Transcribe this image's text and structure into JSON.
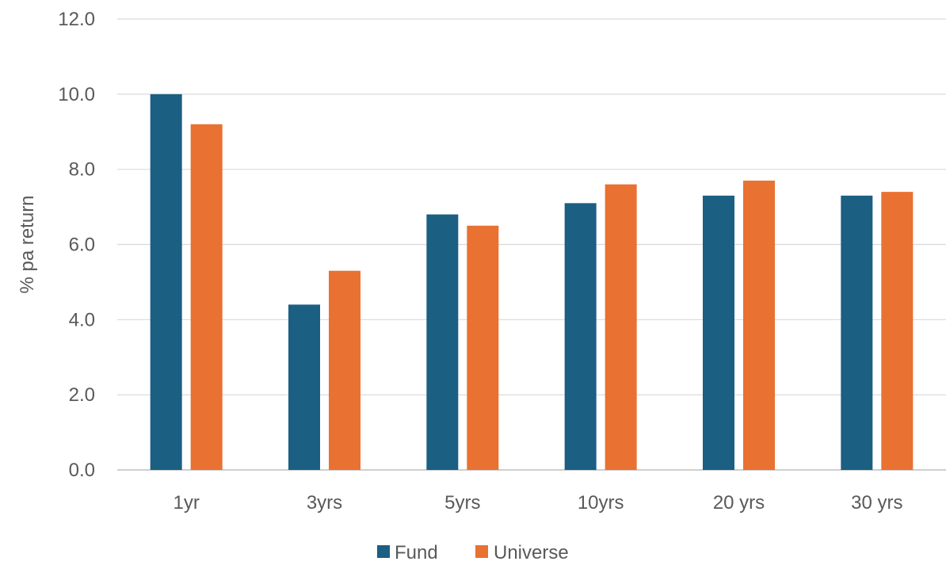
{
  "chart_data": {
    "type": "bar",
    "title": "",
    "xlabel": "",
    "ylabel": "% pa return",
    "categories": [
      "1yr",
      "3yrs",
      "5yrs",
      "10yrs",
      "20 yrs",
      "30 yrs"
    ],
    "series": [
      {
        "name": "Fund",
        "color": "#1b5f82",
        "values": [
          10.0,
          4.4,
          6.8,
          7.1,
          7.3,
          7.3
        ]
      },
      {
        "name": "Universe",
        "color": "#e97131",
        "values": [
          9.2,
          5.3,
          6.5,
          7.6,
          7.7,
          7.4
        ]
      }
    ],
    "ylim": [
      0,
      12
    ],
    "yticks": [
      "0.0",
      "2.0",
      "4.0",
      "6.0",
      "8.0",
      "10.0",
      "12.0"
    ],
    "grid": true,
    "legend": "bottom"
  }
}
